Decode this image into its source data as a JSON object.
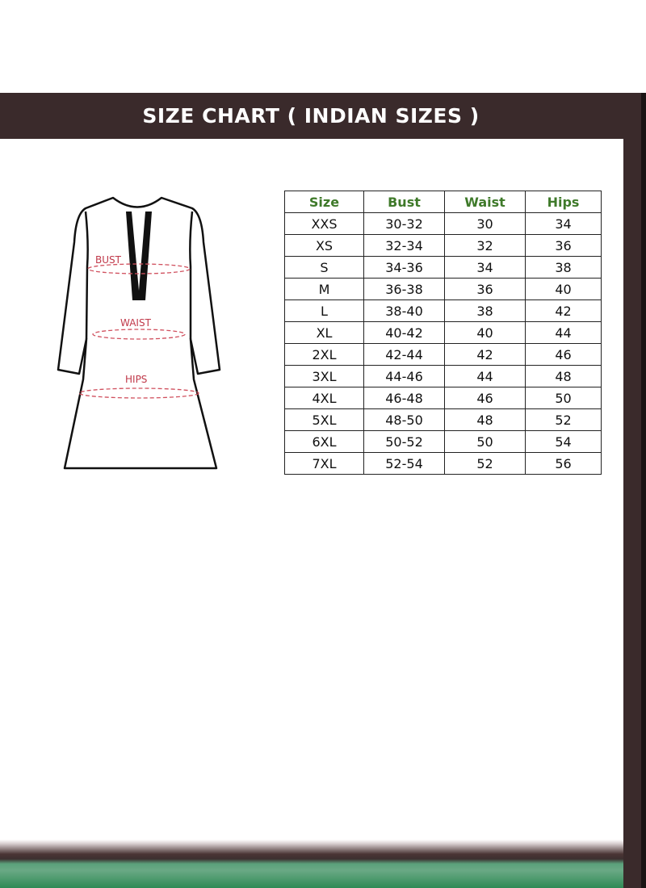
{
  "title": "SIZE CHART ( INDIAN SIZES )",
  "diagram_labels": {
    "bust": "BUST",
    "waist": "WAIST",
    "hips": "HIPS"
  },
  "colors": {
    "header_bg": "#3a2a2b",
    "header_text": "#ffffff",
    "label_red": "#c0394a",
    "table_header_green": "#3f7a2a",
    "bottom_green": "#2f8a55"
  },
  "table": {
    "headers": [
      "Size",
      "Bust",
      "Waist",
      "Hips"
    ],
    "rows": [
      [
        "XXS",
        "30-32",
        "30",
        "34"
      ],
      [
        "XS",
        "32-34",
        "32",
        "36"
      ],
      [
        "S",
        "34-36",
        "34",
        "38"
      ],
      [
        "M",
        "36-38",
        "36",
        "40"
      ],
      [
        "L",
        "38-40",
        "38",
        "42"
      ],
      [
        "XL",
        "40-42",
        "40",
        "44"
      ],
      [
        "2XL",
        "42-44",
        "42",
        "46"
      ],
      [
        "3XL",
        "44-46",
        "44",
        "48"
      ],
      [
        "4XL",
        "46-48",
        "46",
        "50"
      ],
      [
        "5XL",
        "48-50",
        "48",
        "52"
      ],
      [
        "6XL",
        "50-52",
        "50",
        "54"
      ],
      [
        "7XL",
        "52-54",
        "52",
        "56"
      ]
    ]
  }
}
